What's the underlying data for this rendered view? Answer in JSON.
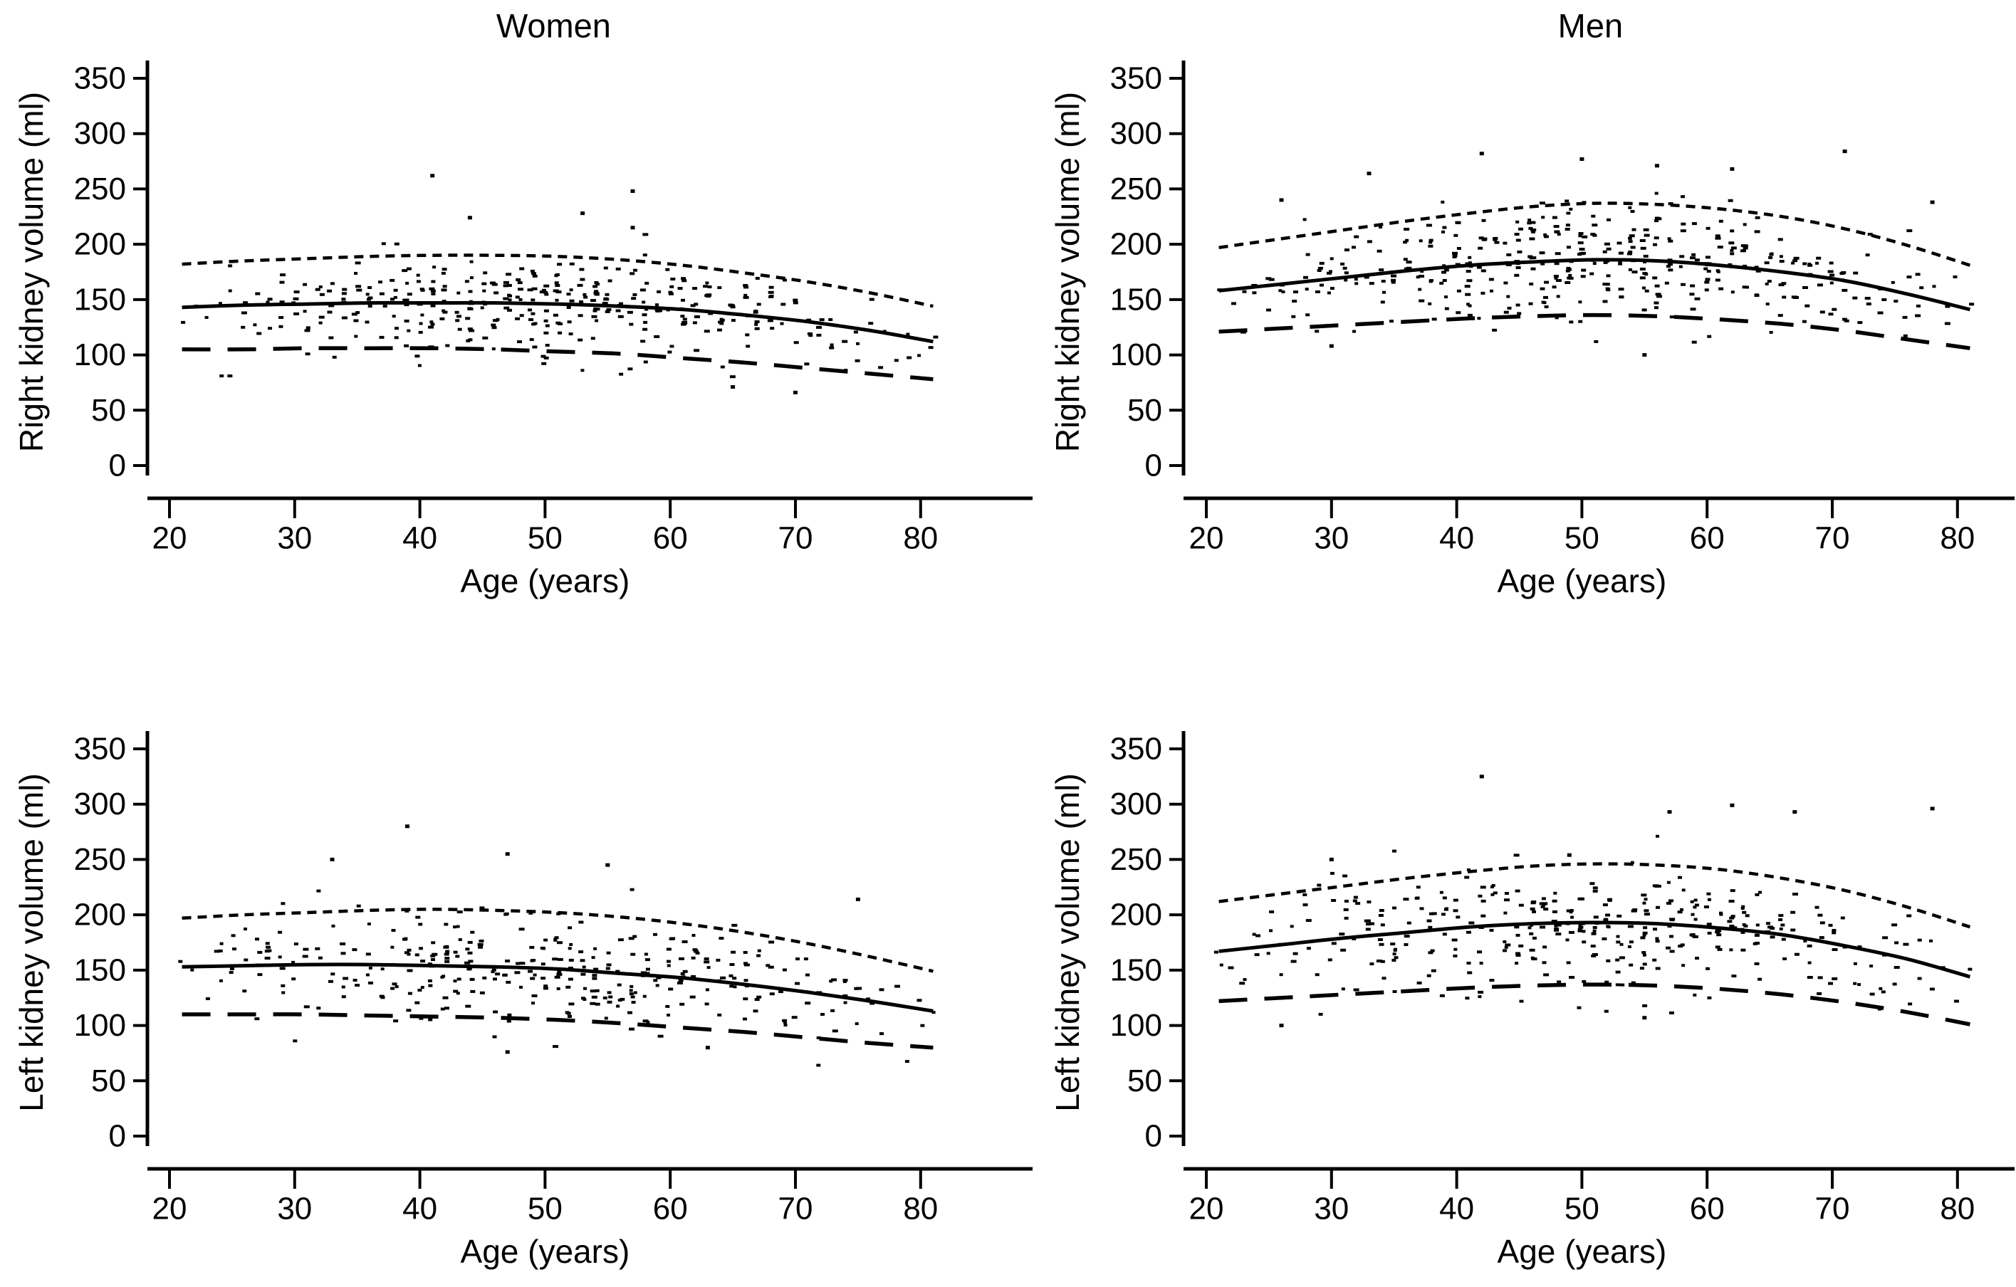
{
  "figure": {
    "background": "#ffffff",
    "ink": "#000000",
    "description": "Four-panel scatter plot figure of kidney volume versus age with fitted mean and reference-limit curves"
  },
  "column_titles": {
    "left": "Women",
    "right": "Men"
  },
  "axis_labels": {
    "x": "Age (years)",
    "y_top": "Right kidney volume (ml)",
    "y_bottom": "Left kidney volume (ml)"
  },
  "chart_data": [
    {
      "id": "women-right-kidney",
      "type": "scatter+line",
      "grid": {
        "row": 0,
        "col": 0
      },
      "title": "Women",
      "show_title": true,
      "xlabel": "Age (years)",
      "ylabel": "Right kidney volume (ml)",
      "x_ticks": [
        20,
        30,
        40,
        50,
        60,
        70,
        80
      ],
      "y_ticks": [
        0,
        50,
        100,
        150,
        200,
        250,
        300,
        350
      ],
      "x_range": [
        21,
        81
      ],
      "y_range": [
        0,
        350
      ],
      "grid_lines": false,
      "legend": "none",
      "ages": [
        21,
        26,
        31,
        36,
        41,
        46,
        51,
        56,
        61,
        66,
        71,
        76,
        81
      ],
      "series": [
        {
          "name": "mean",
          "style": "solid",
          "values": [
            143,
            145,
            146,
            147,
            147,
            147,
            146,
            144,
            141,
            136,
            130,
            122,
            112
          ]
        },
        {
          "name": "upper-reference-limit",
          "style": "short-dash",
          "values": [
            182,
            185,
            187,
            189,
            190,
            190,
            189,
            186,
            181,
            174,
            166,
            156,
            144
          ]
        },
        {
          "name": "lower-reference-limit",
          "style": "long-dash",
          "values": [
            105,
            105,
            106,
            106,
            106,
            105,
            103,
            101,
            97,
            93,
            88,
            83,
            78
          ]
        }
      ],
      "scatter": {
        "seed": 101,
        "base": 2,
        "amp": 8,
        "mu": 50,
        "sigma": 18,
        "note": "individual subject measurements, clustered at integer ages"
      },
      "outliers": [
        [
          41,
          262
        ],
        [
          44,
          224
        ],
        [
          57,
          248
        ],
        [
          53,
          228
        ],
        [
          57,
          215
        ],
        [
          65,
          71
        ],
        [
          70,
          66
        ]
      ]
    },
    {
      "id": "men-right-kidney",
      "type": "scatter+line",
      "grid": {
        "row": 0,
        "col": 1
      },
      "title": "Men",
      "show_title": true,
      "xlabel": "Age (years)",
      "ylabel": "Right kidney volume (ml)",
      "x_ticks": [
        20,
        30,
        40,
        50,
        60,
        70,
        80
      ],
      "y_ticks": [
        0,
        50,
        100,
        150,
        200,
        250,
        300,
        350
      ],
      "x_range": [
        21,
        81
      ],
      "y_range": [
        0,
        350
      ],
      "grid_lines": false,
      "legend": "none",
      "ages": [
        21,
        26,
        31,
        36,
        41,
        46,
        51,
        56,
        61,
        66,
        71,
        76,
        81
      ],
      "series": [
        {
          "name": "mean",
          "style": "solid",
          "values": [
            158,
            164,
            170,
            176,
            181,
            184,
            186,
            185,
            181,
            175,
            167,
            155,
            141
          ]
        },
        {
          "name": "upper-reference-limit",
          "style": "short-dash",
          "values": [
            197,
            205,
            213,
            221,
            228,
            234,
            237,
            236,
            232,
            225,
            214,
            199,
            181
          ]
        },
        {
          "name": "lower-reference-limit",
          "style": "long-dash",
          "values": [
            121,
            124,
            127,
            130,
            133,
            135,
            136,
            135,
            132,
            128,
            122,
            114,
            106
          ]
        }
      ],
      "scatter": {
        "seed": 102,
        "base": 2,
        "amp": 9,
        "mu": 50,
        "sigma": 18,
        "note": "individual subject measurements, clustered at integer ages"
      },
      "outliers": [
        [
          33,
          264
        ],
        [
          42,
          282
        ],
        [
          50,
          277
        ],
        [
          56,
          271
        ],
        [
          62,
          268
        ],
        [
          71,
          284
        ],
        [
          26,
          240
        ],
        [
          78,
          238
        ],
        [
          30,
          108
        ],
        [
          55,
          100
        ]
      ]
    },
    {
      "id": "women-left-kidney",
      "type": "scatter+line",
      "grid": {
        "row": 1,
        "col": 0
      },
      "title": "Women",
      "show_title": false,
      "xlabel": "Age (years)",
      "ylabel": "Left kidney volume (ml)",
      "x_ticks": [
        20,
        30,
        40,
        50,
        60,
        70,
        80
      ],
      "y_ticks": [
        0,
        50,
        100,
        150,
        200,
        250,
        300,
        350
      ],
      "x_range": [
        21,
        81
      ],
      "y_range": [
        0,
        350
      ],
      "grid_lines": false,
      "legend": "none",
      "ages": [
        21,
        26,
        31,
        36,
        41,
        46,
        51,
        56,
        61,
        66,
        71,
        76,
        81
      ],
      "series": [
        {
          "name": "mean",
          "style": "solid",
          "values": [
            153,
            154,
            155,
            155,
            154,
            153,
            151,
            147,
            143,
            137,
            130,
            122,
            113
          ]
        },
        {
          "name": "upper-reference-limit",
          "style": "short-dash",
          "values": [
            197,
            200,
            202,
            204,
            205,
            204,
            202,
            198,
            192,
            184,
            174,
            162,
            149
          ]
        },
        {
          "name": "lower-reference-limit",
          "style": "long-dash",
          "values": [
            110,
            110,
            110,
            109,
            108,
            107,
            105,
            102,
            98,
            94,
            89,
            84,
            80
          ]
        }
      ],
      "scatter": {
        "seed": 103,
        "base": 2,
        "amp": 8,
        "mu": 50,
        "sigma": 18,
        "note": "individual subject measurements, clustered at integer ages"
      },
      "outliers": [
        [
          39,
          280
        ],
        [
          33,
          250
        ],
        [
          47,
          255
        ],
        [
          55,
          245
        ],
        [
          75,
          214
        ],
        [
          47,
          76
        ],
        [
          63,
          80
        ]
      ]
    },
    {
      "id": "men-left-kidney",
      "type": "scatter+line",
      "grid": {
        "row": 1,
        "col": 1
      },
      "title": "Men",
      "show_title": false,
      "xlabel": "Age (years)",
      "ylabel": "Left kidney volume (ml)",
      "x_ticks": [
        20,
        30,
        40,
        50,
        60,
        70,
        80
      ],
      "y_ticks": [
        0,
        50,
        100,
        150,
        200,
        250,
        300,
        350
      ],
      "x_range": [
        21,
        81
      ],
      "y_range": [
        0,
        350
      ],
      "grid_lines": false,
      "legend": "none",
      "ages": [
        21,
        26,
        31,
        36,
        41,
        46,
        51,
        56,
        61,
        66,
        71,
        76,
        81
      ],
      "series": [
        {
          "name": "mean",
          "style": "solid",
          "values": [
            167,
            173,
            179,
            184,
            189,
            192,
            193,
            192,
            188,
            182,
            172,
            160,
            144
          ]
        },
        {
          "name": "upper-reference-limit",
          "style": "short-dash",
          "values": [
            212,
            219,
            226,
            233,
            239,
            244,
            246,
            245,
            241,
            233,
            222,
            207,
            189
          ]
        },
        {
          "name": "lower-reference-limit",
          "style": "long-dash",
          "values": [
            122,
            125,
            128,
            131,
            134,
            136,
            137,
            136,
            133,
            128,
            121,
            112,
            101
          ]
        }
      ],
      "scatter": {
        "seed": 104,
        "base": 2,
        "amp": 9,
        "mu": 50,
        "sigma": 18,
        "note": "individual subject measurements, clustered at integer ages"
      },
      "outliers": [
        [
          42,
          325
        ],
        [
          57,
          293
        ],
        [
          62,
          299
        ],
        [
          67,
          293
        ],
        [
          78,
          296
        ],
        [
          30,
          250
        ],
        [
          49,
          254
        ],
        [
          26,
          100
        ],
        [
          55,
          107
        ]
      ]
    }
  ]
}
